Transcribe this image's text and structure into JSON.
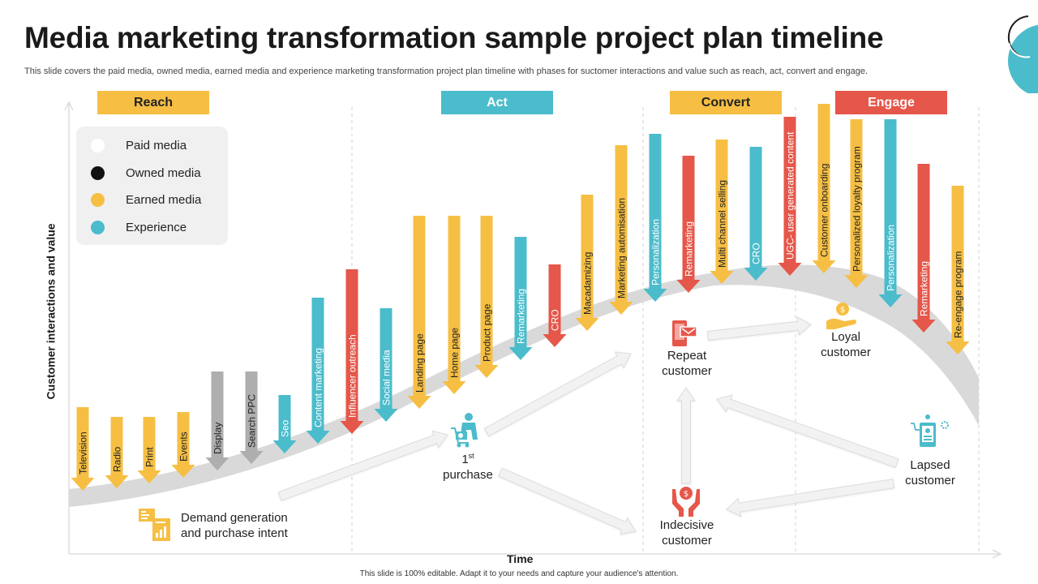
{
  "title": "Media marketing transformation sample project plan timeline",
  "subtitle": "This slide covers the paid media, owned media, earned media and experience marketing transformation project plan timeline with phases for suctomer interactions and value such as reach, act, convert and engage.",
  "footer": "This slide is 100% editable. Adapt it to your needs and capture your audience's attention.",
  "axes": {
    "x_label": "Time",
    "y_label": "Customer interactions and value"
  },
  "colors": {
    "paid": "#ffffff",
    "owned": "#111111",
    "earned": "#f6bf43",
    "experience": "#4bbccb",
    "red": "#e5574a",
    "gray": "#aeaeae"
  },
  "legend": [
    {
      "label": "Paid media",
      "color": "#ffffff"
    },
    {
      "label": "Owned media",
      "color": "#111111"
    },
    {
      "label": "Earned  media",
      "color": "#f6bf43"
    },
    {
      "label": "Experience",
      "color": "#4bbccb"
    }
  ],
  "phases": [
    {
      "label": "Reach",
      "color": "#f6bf43"
    },
    {
      "label": "Act",
      "color": "#4bbccb"
    },
    {
      "label": "Convert",
      "color": "#f6bf43"
    },
    {
      "label": "Engage",
      "color": "#e5574a"
    }
  ],
  "arrows": [
    {
      "label": "Television",
      "color": "#f6bf43"
    },
    {
      "label": "Radio",
      "color": "#f6bf43"
    },
    {
      "label": "Print",
      "color": "#f6bf43"
    },
    {
      "label": "Events",
      "color": "#f6bf43"
    },
    {
      "label": "Display",
      "color": "#aeaeae"
    },
    {
      "label": "Search PPC",
      "color": "#aeaeae"
    },
    {
      "label": "Seo",
      "color": "#4bbccb"
    },
    {
      "label": "Content marketing",
      "color": "#4bbccb"
    },
    {
      "label": "Influencer outreach",
      "color": "#e5574a"
    },
    {
      "label": "Social media",
      "color": "#4bbccb"
    },
    {
      "label": "Landing page",
      "color": "#f6bf43"
    },
    {
      "label": "Home page",
      "color": "#f6bf43"
    },
    {
      "label": "Product page",
      "color": "#f6bf43"
    },
    {
      "label": "Remarketing",
      "color": "#4bbccb"
    },
    {
      "label": "CRO",
      "color": "#e5574a"
    },
    {
      "label": "Macadamizing",
      "color": "#f6bf43"
    },
    {
      "label": "Marketing automisation",
      "color": "#f6bf43"
    },
    {
      "label": "Personalization",
      "color": "#4bbccb"
    },
    {
      "label": "Remarketing",
      "color": "#e5574a"
    },
    {
      "label": "Multi channel selling",
      "color": "#f6bf43"
    },
    {
      "label": "CRO",
      "color": "#4bbccb"
    },
    {
      "label": "UGC- user generated content",
      "color": "#e5574a"
    },
    {
      "label": "Customer onboarding",
      "color": "#f6bf43"
    },
    {
      "label": "Personalized loyalty program",
      "color": "#f6bf43"
    },
    {
      "label": "Personalization",
      "color": "#4bbccb"
    },
    {
      "label": "Remarketing",
      "color": "#e5574a"
    },
    {
      "label": "Re-engage  program",
      "color": "#f6bf43"
    }
  ],
  "nodes": {
    "demand": {
      "line1": "Demand generation",
      "line2": "and purchase intent"
    },
    "purchase": {
      "main": "1",
      "sup": "st",
      "line2": "purchase"
    },
    "repeat": {
      "line1": "Repeat",
      "line2": "customer"
    },
    "loyal": {
      "line1": "Loyal",
      "line2": "customer"
    },
    "indecisive": {
      "line1": "Indecisive",
      "line2": "customer"
    },
    "lapsed": {
      "line1": "Lapsed",
      "line2": "customer"
    }
  }
}
